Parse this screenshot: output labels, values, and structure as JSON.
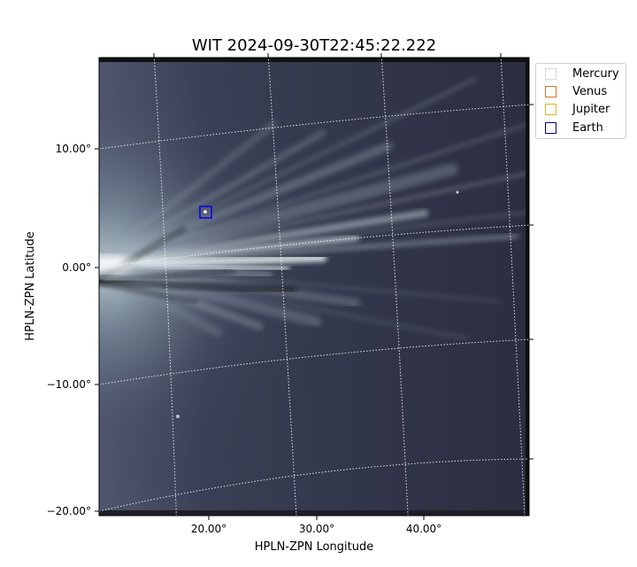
{
  "chart_data": {
    "type": "heatmap",
    "title": "WIT 2024-09-30T22:45:22.222",
    "xlabel": "HPLN-ZPN Longitude",
    "ylabel": "HPLN-ZPN Latitude",
    "x_tick_labels": [
      "20.00°",
      "30.00°",
      "40.00°"
    ],
    "y_tick_labels": [
      "10.00°",
      "0.00°",
      "−10.00°",
      "−20.00°"
    ],
    "xlim": [
      10,
      50
    ],
    "ylim": [
      -20,
      17.5
    ],
    "grid": true,
    "colormap": "bone",
    "legend_position": "upper-right-outside",
    "legend": [
      {
        "name": "Mercury",
        "color": "#d8d8d8"
      },
      {
        "name": "Venus",
        "color": "#e07020"
      },
      {
        "name": "Jupiter",
        "color": "#e8b020"
      },
      {
        "name": "Earth",
        "color": "#00007a"
      }
    ],
    "markers": [
      {
        "name": "Earth",
        "x": 19.7,
        "y": 4.7,
        "color": "#0000ee"
      }
    ]
  }
}
